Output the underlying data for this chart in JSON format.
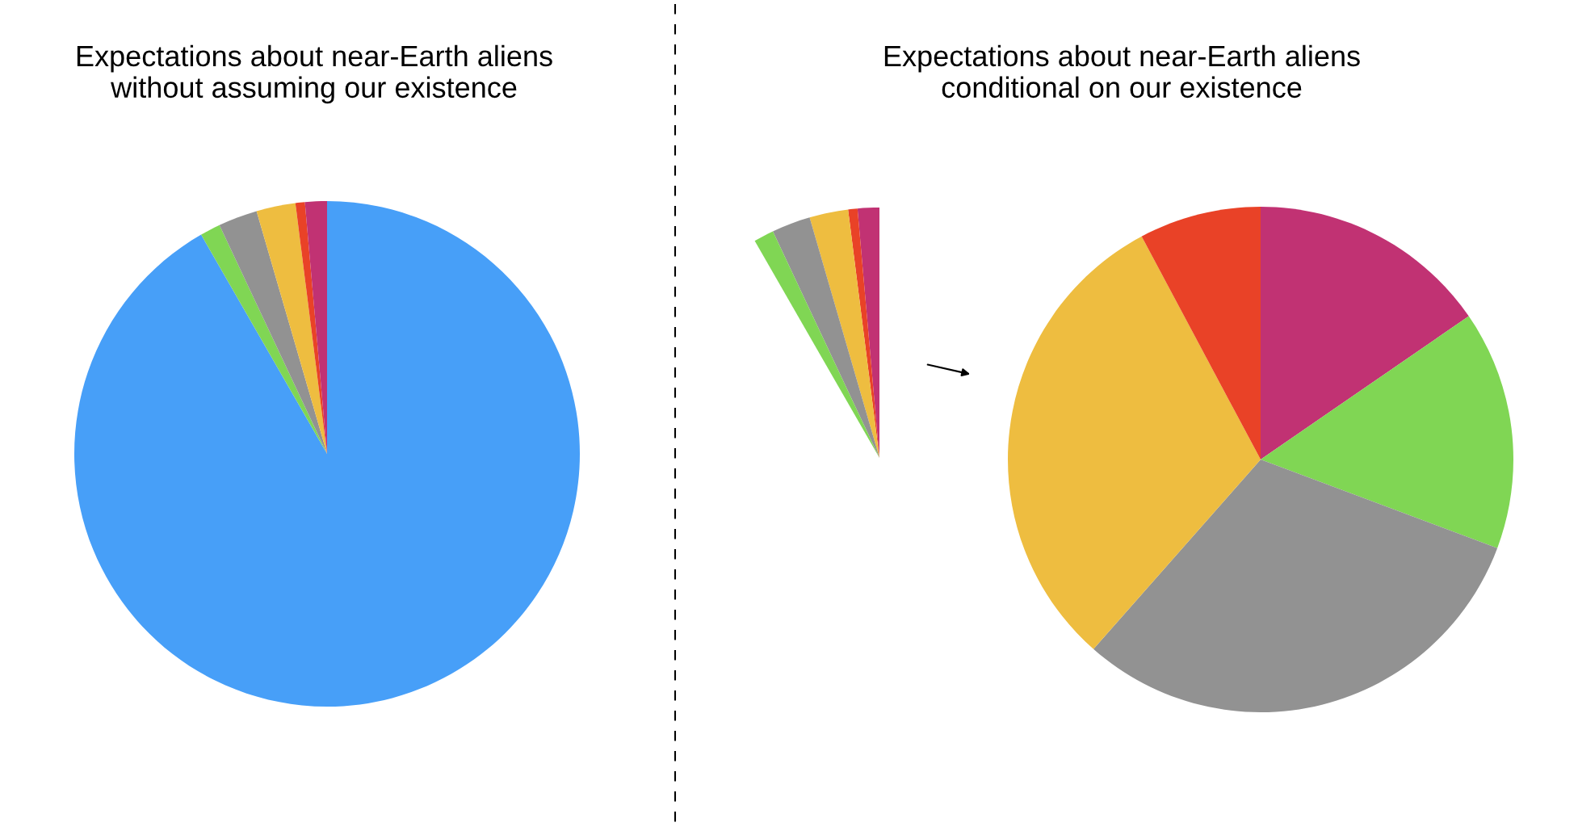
{
  "chart_data": [
    {
      "type": "pie",
      "title": "Expectations about near-Earth aliens\nwithout assuming our existence",
      "categories": [
        null,
        null,
        null,
        null,
        null,
        null
      ],
      "values": [
        91.7,
        1.3,
        2.5,
        2.5,
        0.6,
        1.4
      ],
      "colors": [
        "#479ff8",
        "#80d654",
        "#929292",
        "#eebd40",
        "#e94227",
        "#c13273"
      ]
    },
    {
      "type": "pie",
      "title": "Expectations about near-Earth aliens\nconditional on our existence",
      "categories": [
        null,
        null,
        null,
        null,
        null
      ],
      "values": [
        15.4,
        15.3,
        30.8,
        30.7,
        7.8
      ],
      "colors": [
        "#c13273",
        "#80d654",
        "#929292",
        "#eebd40",
        "#e94227"
      ]
    }
  ]
}
